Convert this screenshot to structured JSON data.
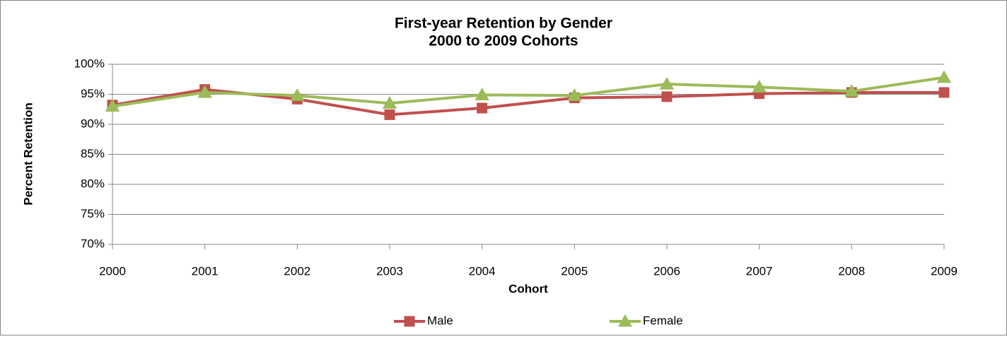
{
  "chart_data": {
    "type": "line",
    "title": "First-year Retention by Gender",
    "subtitle": "2000 to 2009 Cohorts",
    "x_label": "Cohort",
    "y_label": "Percent Retention",
    "categories": [
      "2000",
      "2001",
      "2002",
      "2003",
      "2004",
      "2005",
      "2006",
      "2007",
      "2008",
      "2009"
    ],
    "series": [
      {
        "name": "Male",
        "color": "#c0504d",
        "marker": "square",
        "values": [
          93.2,
          95.8,
          94.2,
          91.6,
          92.7,
          94.4,
          94.6,
          95.1,
          95.3,
          95.3
        ]
      },
      {
        "name": "Female",
        "color": "#9bbb59",
        "marker": "triangle",
        "values": [
          93.0,
          95.3,
          94.8,
          93.5,
          94.9,
          94.8,
          96.7,
          96.2,
          95.5,
          97.8
        ]
      }
    ],
    "ylim": [
      70,
      100
    ],
    "yticks": [
      {
        "value": 70,
        "label": "70%"
      },
      {
        "value": 75,
        "label": "75%"
      },
      {
        "value": 80,
        "label": "80%"
      },
      {
        "value": 85,
        "label": "85%"
      },
      {
        "value": 90,
        "label": "90%"
      },
      {
        "value": 95,
        "label": "95%"
      },
      {
        "value": 100,
        "label": "100%"
      }
    ],
    "grid": true,
    "legend": "bottom"
  }
}
